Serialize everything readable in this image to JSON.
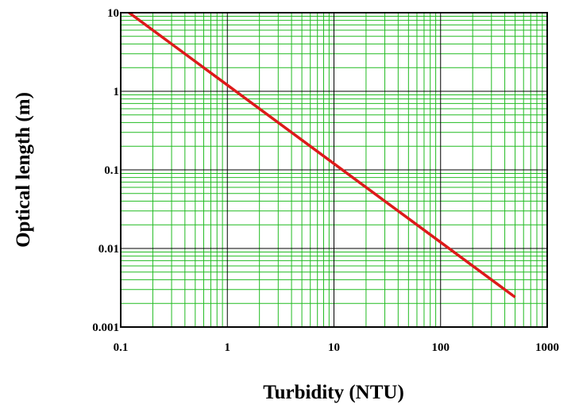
{
  "chart_data": {
    "type": "line",
    "xlabel": "Turbidity (NTU)",
    "ylabel": "Optical length (m)",
    "xscale": "log",
    "yscale": "log",
    "xlim": [
      0.1,
      1000
    ],
    "ylim": [
      0.001,
      10
    ],
    "x_tick_labels": [
      "0.1",
      "1",
      "10",
      "100",
      "1000"
    ],
    "y_tick_labels": [
      "0.001",
      "0.01",
      "0.1",
      "1",
      "10"
    ],
    "grid": true,
    "colors": {
      "line": "#dd1a1a",
      "minor_grid": "#22bb22",
      "major_grid": "#000000"
    },
    "series": [
      {
        "points": [
          {
            "x": 0.1,
            "y": 12
          },
          {
            "x": 1,
            "y": 1.2
          },
          {
            "x": 10,
            "y": 0.12
          },
          {
            "x": 100,
            "y": 0.012
          },
          {
            "x": 500,
            "y": 0.0024
          }
        ]
      }
    ]
  }
}
